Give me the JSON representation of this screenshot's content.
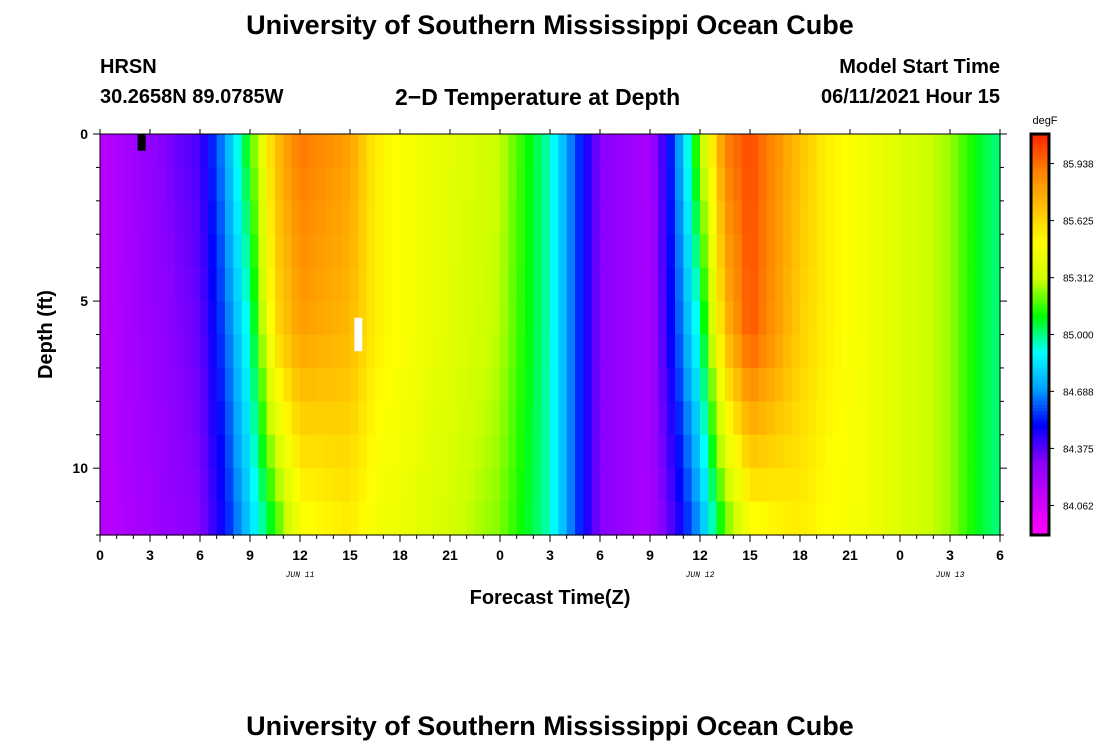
{
  "page": {
    "title_top": "University of Southern Mississippi Ocean Cube",
    "title_bottom": "University of Southern Mississippi Ocean Cube",
    "station_name": "HRSN",
    "station_coords": "30.2658N  89.0785W",
    "plot_title": "2−D Temperature at Depth",
    "model_label": "Model Start Time",
    "model_time": "06/11/2021 Hour 15"
  },
  "chart_data": {
    "type": "heatmap",
    "title": "2−D Temperature at Depth",
    "xlabel": "Forecast Time(Z)",
    "ylabel": "Depth (ft)",
    "xlim": [
      0,
      54
    ],
    "ylim": [
      0,
      12
    ],
    "x_tick_values": [
      0,
      3,
      6,
      9,
      12,
      15,
      18,
      21,
      24,
      27,
      30,
      33,
      36,
      39,
      42,
      45,
      48,
      51,
      54
    ],
    "x_tick_labels": [
      "0",
      "3",
      "6",
      "9",
      "12",
      "15",
      "18",
      "21",
      "0",
      "3",
      "6",
      "9",
      "12",
      "15",
      "18",
      "21",
      "0",
      "3",
      "6"
    ],
    "y_tick_values": [
      0,
      5,
      10
    ],
    "y_tick_labels": [
      "0",
      "5",
      "10"
    ],
    "date_labels": [
      {
        "text": "JUN 11",
        "x": 12
      },
      {
        "text": "JUN 12",
        "x": 36
      },
      {
        "text": "JUN 13",
        "x": 51
      }
    ],
    "colorbar": {
      "unit": "degF",
      "min": 83.9,
      "max": 86.1,
      "tick_values": [
        84.062,
        84.375,
        84.688,
        85.0,
        85.312,
        85.625,
        85.938
      ],
      "tick_labels": [
        "84.062",
        "84.375",
        "84.688",
        "85.000",
        "85.312",
        "85.625",
        "85.938"
      ],
      "colors": [
        "#ff00ff",
        "#cc00ff",
        "#8800ff",
        "#0000ff",
        "#00a0ff",
        "#00ffff",
        "#00ff00",
        "#ccff00",
        "#ffff00",
        "#ffc000",
        "#ff8000",
        "#ff2000"
      ]
    },
    "markers": [
      {
        "label": "observation",
        "x": 2.5,
        "depth": [
          0,
          0.5
        ],
        "color": "#000000"
      },
      {
        "label": "current time",
        "x": 15.5,
        "depth": [
          5.5,
          6.5
        ],
        "color": "#ffffff"
      }
    ],
    "depth_layers": [
      0,
      1,
      2,
      3,
      4,
      5,
      6,
      7,
      8,
      9,
      10,
      11
    ],
    "temperature_degF_profiles": {
      "x": [
        0,
        6,
        7.5,
        9,
        10.5,
        12,
        15,
        16.5,
        19,
        24,
        27,
        28.5,
        30,
        33,
        34.5,
        36,
        37.5,
        39,
        42,
        43.5,
        46,
        51,
        53,
        54
      ],
      "depth_0ft": [
        84.15,
        84.4,
        84.7,
        85.15,
        85.7,
        85.93,
        85.8,
        85.55,
        85.45,
        85.3,
        84.95,
        84.6,
        84.3,
        84.2,
        84.6,
        85.25,
        85.9,
        86.02,
        85.7,
        85.55,
        85.45,
        85.25,
        85.05,
        85.0
      ],
      "depth_6ft": [
        84.15,
        84.35,
        84.6,
        84.95,
        85.6,
        85.8,
        85.72,
        85.55,
        85.45,
        85.28,
        84.95,
        84.6,
        84.3,
        84.2,
        84.55,
        84.95,
        85.7,
        86.0,
        85.65,
        85.55,
        85.45,
        85.25,
        85.05,
        85.0
      ],
      "depth_12ft": [
        84.15,
        84.3,
        84.5,
        84.8,
        85.1,
        85.45,
        85.55,
        85.45,
        85.4,
        85.22,
        84.95,
        84.6,
        84.3,
        84.2,
        84.4,
        84.7,
        85.15,
        85.45,
        85.55,
        85.5,
        85.45,
        85.25,
        85.05,
        85.0
      ]
    }
  }
}
